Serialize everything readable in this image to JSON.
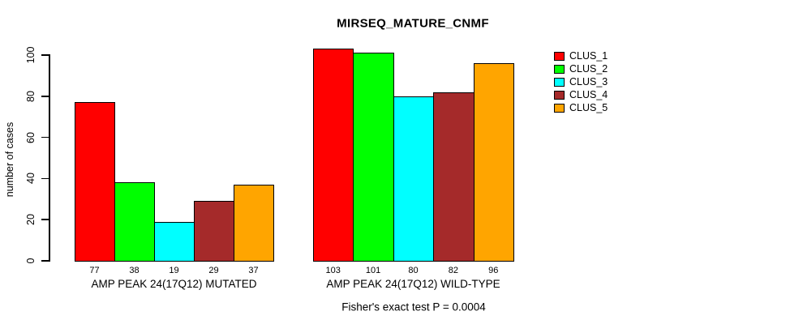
{
  "chart_data": {
    "type": "bar",
    "title": "MIRSEQ_MATURE_CNMF",
    "xlabel": "",
    "ylabel": "number of cases",
    "ylim": [
      0,
      100
    ],
    "yticks": [
      0,
      20,
      40,
      60,
      80,
      100
    ],
    "grid": false,
    "legend_position": "right",
    "bar_border_color": "#000000",
    "categories": [
      "AMP PEAK 24(17Q12) MUTATED",
      "AMP PEAK 24(17Q12) WILD-TYPE"
    ],
    "series": [
      {
        "name": "CLUS_1",
        "color": "#FF0000",
        "values": [
          77,
          103
        ]
      },
      {
        "name": "CLUS_2",
        "color": "#00FF00",
        "values": [
          38,
          101
        ]
      },
      {
        "name": "CLUS_3",
        "color": "#00FFFF",
        "values": [
          19,
          80
        ]
      },
      {
        "name": "CLUS_4",
        "color": "#A52A2A",
        "values": [
          29,
          82
        ]
      },
      {
        "name": "CLUS_5",
        "color": "#FFA500",
        "values": [
          37,
          96
        ]
      }
    ],
    "bar_value_labels_shown": true,
    "annotation": "Fisher's exact test P = 0.0004"
  }
}
